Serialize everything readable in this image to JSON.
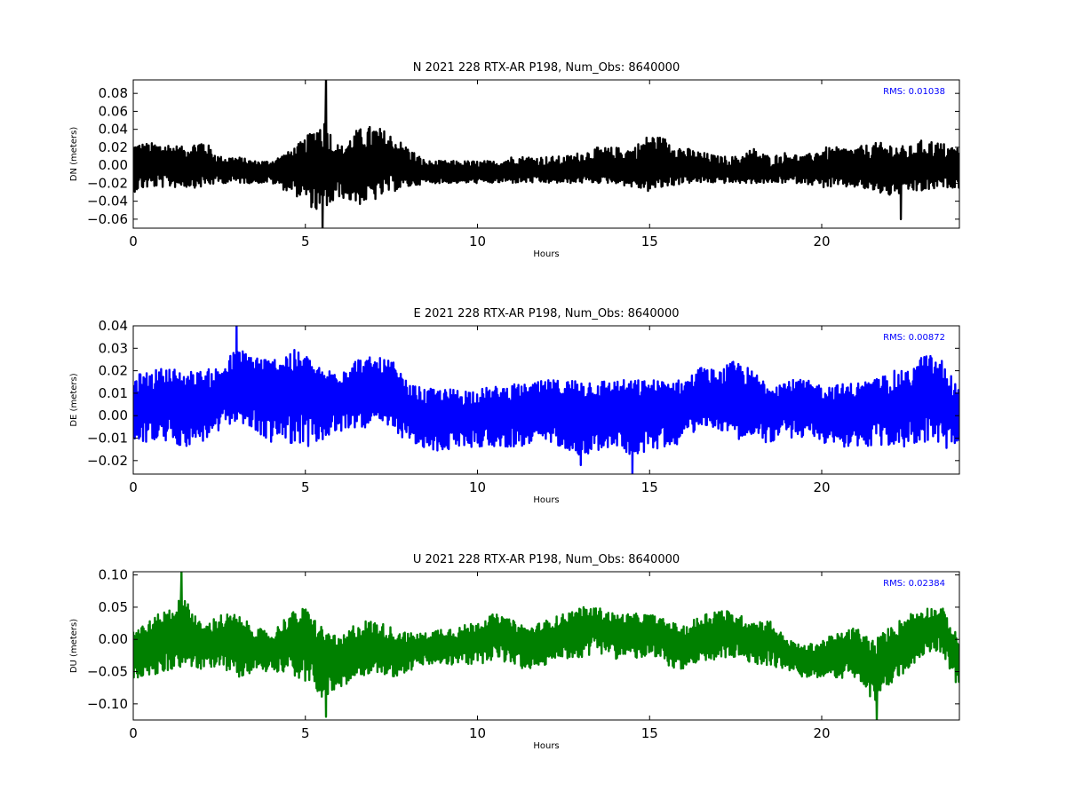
{
  "chart_data": [
    {
      "type": "line",
      "title": "N 2021 228 RTX-AR  P198, Num_Obs: 8640000",
      "xlabel": "Hours",
      "ylabel": "DN (meters)",
      "xlim": [
        0,
        24
      ],
      "ylim": [
        -0.07,
        0.095
      ],
      "xticks": [
        "0",
        "5",
        "10",
        "15",
        "20"
      ],
      "yticks": [
        "0.08",
        "0.06",
        "0.04",
        "0.02",
        "0.00",
        "−0.02",
        "−0.04",
        "−0.06"
      ],
      "ytick_values": [
        0.08,
        0.06,
        0.04,
        0.02,
        0.0,
        -0.02,
        -0.04,
        -0.06
      ],
      "annotation": "RMS:  0.01038",
      "annotation_color": "#0000ff",
      "color": "#000000",
      "grid": false,
      "series": [
        {
          "x": [
            0,
            0.5,
            1,
            1.5,
            2,
            2.5,
            3,
            3.5,
            4,
            4.5,
            5,
            5.5,
            6,
            6.5,
            7,
            7.5,
            8,
            8.5,
            9,
            9.5,
            10,
            10.5,
            11,
            11.5,
            12,
            12.5,
            13,
            13.5,
            14,
            14.5,
            15,
            15.5,
            16,
            16.5,
            17,
            17.5,
            18,
            18.5,
            19,
            19.5,
            20,
            20.5,
            21,
            21.5,
            22,
            22.5,
            23,
            23.5,
            24
          ],
          "center": [
            0.0,
            0.0,
            0.0,
            0.0,
            0.0,
            -0.005,
            -0.005,
            -0.005,
            -0.005,
            0.0,
            0.0,
            -0.005,
            -0.005,
            0.0,
            0.0,
            0.0,
            -0.005,
            -0.01,
            -0.01,
            -0.01,
            -0.01,
            -0.01,
            -0.005,
            -0.005,
            -0.01,
            -0.01,
            -0.005,
            -0.005,
            -0.005,
            -0.005,
            0.0,
            0.0,
            -0.005,
            -0.005,
            -0.005,
            -0.01,
            -0.01,
            -0.01,
            -0.005,
            -0.005,
            -0.005,
            -0.005,
            -0.005,
            -0.005,
            -0.005,
            -0.005,
            -0.005,
            -0.005,
            -0.005
          ],
          "upper": [
            0.025,
            0.025,
            0.025,
            0.02,
            0.03,
            0.01,
            0.01,
            0.005,
            0.005,
            0.015,
            0.03,
            0.055,
            0.02,
            0.04,
            0.045,
            0.035,
            0.02,
            0.005,
            0.005,
            0.005,
            0.005,
            0.005,
            0.01,
            0.01,
            0.01,
            0.01,
            0.015,
            0.02,
            0.02,
            0.02,
            0.035,
            0.03,
            0.02,
            0.015,
            0.01,
            0.01,
            0.02,
            0.01,
            0.015,
            0.01,
            0.02,
            0.02,
            0.02,
            0.025,
            0.025,
            0.02,
            0.03,
            0.025,
            0.02
          ],
          "lower": [
            -0.03,
            -0.025,
            -0.025,
            -0.025,
            -0.025,
            -0.02,
            -0.02,
            -0.02,
            -0.02,
            -0.03,
            -0.04,
            -0.06,
            -0.035,
            -0.045,
            -0.04,
            -0.03,
            -0.025,
            -0.02,
            -0.02,
            -0.02,
            -0.02,
            -0.02,
            -0.02,
            -0.02,
            -0.02,
            -0.02,
            -0.02,
            -0.02,
            -0.02,
            -0.025,
            -0.03,
            -0.025,
            -0.02,
            -0.02,
            -0.02,
            -0.02,
            -0.02,
            -0.02,
            -0.02,
            -0.02,
            -0.025,
            -0.025,
            -0.025,
            -0.03,
            -0.035,
            -0.03,
            -0.03,
            -0.025,
            -0.025
          ],
          "spikes": [
            {
              "x": 5.6,
              "y": 0.095
            },
            {
              "x": 5.5,
              "y": -0.07
            },
            {
              "x": 22.3,
              "y": -0.06
            }
          ]
        }
      ]
    },
    {
      "type": "line",
      "title": "E 2021 228 RTX-AR  P198, Num_Obs: 8640000",
      "xlabel": "Hours",
      "ylabel": "DE (meters)",
      "xlim": [
        0,
        24
      ],
      "ylim": [
        -0.026,
        0.04
      ],
      "xticks": [
        "0",
        "5",
        "10",
        "15",
        "20"
      ],
      "yticks": [
        "0.04",
        "0.03",
        "0.02",
        "0.01",
        "0.00",
        "−0.01",
        "−0.02"
      ],
      "ytick_values": [
        0.04,
        0.03,
        0.02,
        0.01,
        0.0,
        -0.01,
        -0.02
      ],
      "annotation": "RMS:  0.00872",
      "annotation_color": "#0000ff",
      "color": "#0000ff",
      "grid": false,
      "series": [
        {
          "x": [
            0,
            0.5,
            1,
            1.5,
            2,
            2.5,
            3,
            3.5,
            4,
            4.5,
            5,
            5.5,
            6,
            6.5,
            7,
            7.5,
            8,
            8.5,
            9,
            9.5,
            10,
            10.5,
            11,
            11.5,
            12,
            12.5,
            13,
            13.5,
            14,
            14.5,
            15,
            15.5,
            16,
            16.5,
            17,
            17.5,
            18,
            18.5,
            19,
            19.5,
            20,
            20.5,
            21,
            21.5,
            22,
            22.5,
            23,
            23.5,
            24
          ],
          "center": [
            0.004,
            0.005,
            0.005,
            0.005,
            0.006,
            0.008,
            0.013,
            0.012,
            0.01,
            0.01,
            0.01,
            0.008,
            0.008,
            0.01,
            0.01,
            0.009,
            0.003,
            0.0,
            -0.001,
            0.0,
            0.0,
            0.001,
            0.001,
            0.002,
            0.003,
            0.003,
            0.001,
            0.002,
            0.003,
            0.003,
            0.003,
            0.004,
            0.004,
            0.01,
            0.008,
            0.009,
            0.006,
            0.003,
            0.005,
            0.005,
            0.002,
            0.002,
            0.002,
            0.003,
            0.003,
            0.005,
            0.01,
            0.005,
            0.0
          ],
          "upper": [
            0.018,
            0.02,
            0.022,
            0.02,
            0.02,
            0.022,
            0.03,
            0.028,
            0.025,
            0.03,
            0.028,
            0.02,
            0.022,
            0.026,
            0.026,
            0.025,
            0.014,
            0.012,
            0.012,
            0.012,
            0.012,
            0.013,
            0.014,
            0.014,
            0.016,
            0.016,
            0.017,
            0.016,
            0.016,
            0.016,
            0.016,
            0.016,
            0.016,
            0.022,
            0.02,
            0.025,
            0.02,
            0.015,
            0.016,
            0.016,
            0.014,
            0.014,
            0.015,
            0.016,
            0.02,
            0.02,
            0.028,
            0.025,
            0.012
          ],
          "lower": [
            -0.012,
            -0.012,
            -0.012,
            -0.014,
            -0.012,
            -0.008,
            -0.002,
            -0.008,
            -0.012,
            -0.012,
            -0.014,
            -0.012,
            -0.008,
            -0.005,
            -0.006,
            -0.006,
            -0.012,
            -0.016,
            -0.016,
            -0.014,
            -0.014,
            -0.014,
            -0.014,
            -0.014,
            -0.012,
            -0.014,
            -0.018,
            -0.016,
            -0.014,
            -0.018,
            -0.016,
            -0.014,
            -0.012,
            -0.004,
            -0.006,
            -0.01,
            -0.012,
            -0.012,
            -0.01,
            -0.01,
            -0.012,
            -0.014,
            -0.014,
            -0.014,
            -0.014,
            -0.014,
            -0.012,
            -0.014,
            -0.018
          ],
          "spikes": [
            {
              "x": 3.0,
              "y": 0.04
            },
            {
              "x": 14.5,
              "y": -0.026
            },
            {
              "x": 13.0,
              "y": -0.022
            }
          ]
        }
      ]
    },
    {
      "type": "line",
      "title": "U 2021 228 RTX-AR  P198, Num_Obs: 8640000",
      "xlabel": "Hours",
      "ylabel": "DU (meters)",
      "xlim": [
        0,
        24
      ],
      "ylim": [
        -0.125,
        0.105
      ],
      "xticks": [
        "0",
        "5",
        "10",
        "15",
        "20"
      ],
      "yticks": [
        "0.10",
        "0.05",
        "0.00",
        "−0.05",
        "−0.10"
      ],
      "ytick_values": [
        0.1,
        0.05,
        0.0,
        -0.05,
        -0.1
      ],
      "annotation": "RMS:  0.02384",
      "annotation_color": "#0000ff",
      "color": "#008000",
      "grid": false,
      "series": [
        {
          "x": [
            0,
            0.5,
            1,
            1.5,
            2,
            2.5,
            3,
            3.5,
            4,
            4.5,
            5,
            5.5,
            6,
            6.5,
            7,
            7.5,
            8,
            8.5,
            9,
            9.5,
            10,
            10.5,
            11,
            11.5,
            12,
            12.5,
            13,
            13.5,
            14,
            14.5,
            15,
            15.5,
            16,
            16.5,
            17,
            17.5,
            18,
            18.5,
            19,
            19.5,
            20,
            20.5,
            21,
            21.5,
            22,
            22.5,
            23,
            23.5,
            24
          ],
          "center": [
            -0.02,
            -0.01,
            0.0,
            0.02,
            -0.01,
            0.0,
            -0.01,
            -0.01,
            -0.02,
            0.0,
            0.0,
            -0.03,
            -0.04,
            -0.02,
            -0.01,
            -0.02,
            -0.02,
            -0.01,
            -0.01,
            -0.01,
            0.0,
            0.01,
            0.0,
            -0.01,
            0.0,
            0.01,
            0.02,
            0.02,
            0.01,
            0.01,
            0.01,
            0.0,
            -0.01,
            0.0,
            0.01,
            0.01,
            0.0,
            0.0,
            -0.02,
            -0.03,
            -0.03,
            -0.02,
            -0.02,
            -0.05,
            -0.02,
            0.0,
            0.02,
            0.02,
            -0.04
          ],
          "upper": [
            0.02,
            0.03,
            0.05,
            0.07,
            0.02,
            0.04,
            0.04,
            0.02,
            0.01,
            0.04,
            0.05,
            0.02,
            0.0,
            0.03,
            0.03,
            0.02,
            0.01,
            0.01,
            0.02,
            0.02,
            0.03,
            0.04,
            0.03,
            0.02,
            0.03,
            0.04,
            0.05,
            0.05,
            0.04,
            0.04,
            0.04,
            0.03,
            0.02,
            0.04,
            0.05,
            0.04,
            0.03,
            0.03,
            0.0,
            -0.01,
            0.0,
            0.01,
            0.02,
            0.0,
            0.02,
            0.04,
            0.05,
            0.05,
            0.0
          ],
          "lower": [
            -0.06,
            -0.06,
            -0.05,
            -0.04,
            -0.05,
            -0.04,
            -0.06,
            -0.05,
            -0.05,
            -0.05,
            -0.07,
            -0.09,
            -0.08,
            -0.06,
            -0.05,
            -0.06,
            -0.05,
            -0.04,
            -0.04,
            -0.04,
            -0.04,
            -0.03,
            -0.04,
            -0.05,
            -0.04,
            -0.03,
            -0.03,
            -0.02,
            -0.03,
            -0.03,
            -0.03,
            -0.04,
            -0.05,
            -0.04,
            -0.03,
            -0.03,
            -0.04,
            -0.04,
            -0.05,
            -0.06,
            -0.06,
            -0.06,
            -0.06,
            -0.1,
            -0.07,
            -0.05,
            -0.02,
            -0.02,
            -0.08
          ],
          "spikes": [
            {
              "x": 1.4,
              "y": 0.105
            },
            {
              "x": 5.6,
              "y": -0.12
            },
            {
              "x": 21.6,
              "y": -0.125
            }
          ]
        }
      ]
    }
  ]
}
